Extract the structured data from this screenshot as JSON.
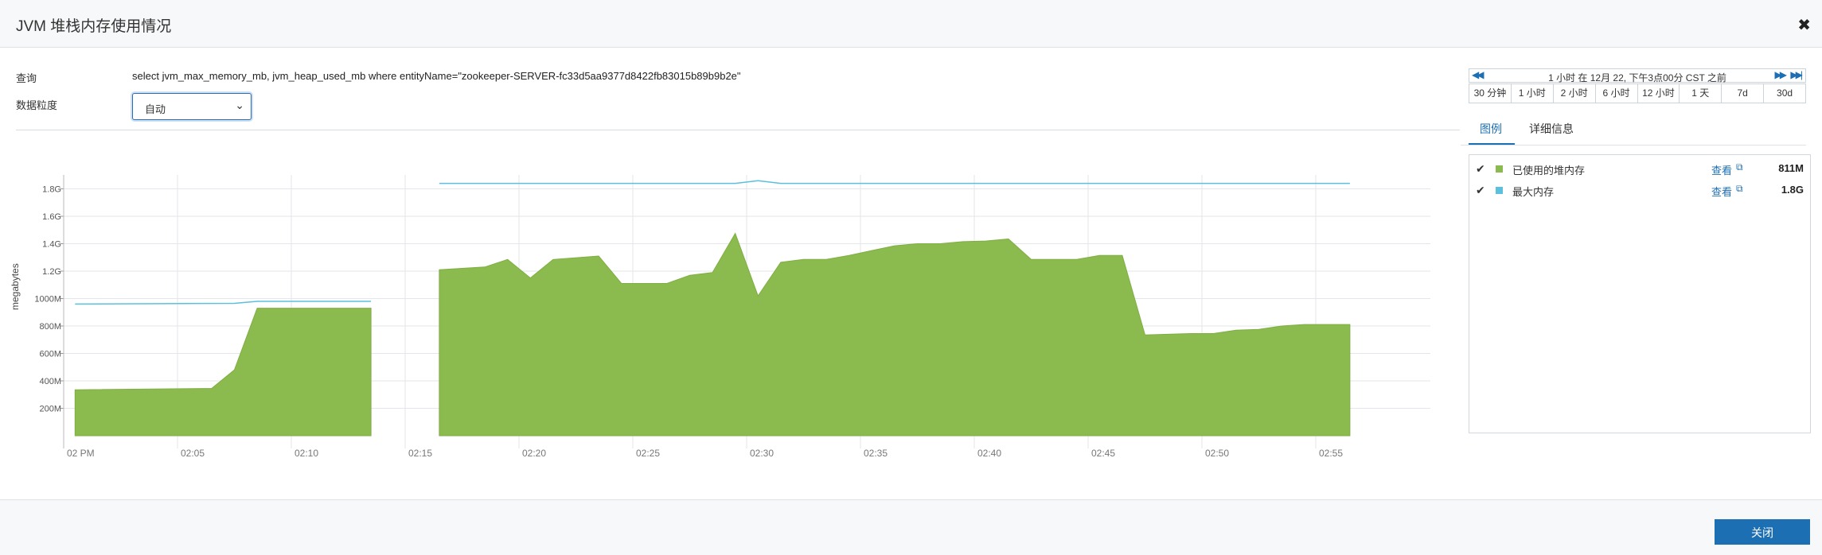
{
  "dialog": {
    "title": "JVM 堆栈内存使用情况",
    "close_icon": "close-icon"
  },
  "query": {
    "label": "查询",
    "value": "select jvm_max_memory_mb, jvm_heap_used_mb where entityName=\"zookeeper-SERVER-fc33d5aa9377d8422fb83015b89b9b2e\""
  },
  "granularity": {
    "label": "数据粒度",
    "selected": "自动"
  },
  "time_range": {
    "label": "1 小时 在 12月 22, 下午3点00分 CST 之前",
    "buttons": [
      "30 分钟",
      "1 小时",
      "2 小时",
      "6 小时",
      "12 小时",
      "1 天",
      "7d",
      "30d"
    ]
  },
  "tabs": [
    {
      "label": "图例"
    },
    {
      "label": "详细信息"
    }
  ],
  "legend": [
    {
      "name": "已使用的堆内存",
      "view": "查看",
      "value": "811M",
      "color": "#8bbb4f"
    },
    {
      "name": "最大内存",
      "view": "查看",
      "value": "1.8G",
      "color": "#5bc0de"
    }
  ],
  "footer": {
    "close_label": "关闭"
  },
  "chart_data": {
    "type": "area",
    "ylabel": "megabytes",
    "y_ticks": [
      "200M",
      "400M",
      "600M",
      "800M",
      "1000M",
      "1.2G",
      "1.4G",
      "1.6G",
      "1.8G"
    ],
    "x_ticks": [
      "02 PM",
      "02:05",
      "02:10",
      "02:15",
      "02:20",
      "02:25",
      "02:30",
      "02:35",
      "02:40",
      "02:45",
      "02:50",
      "02:55"
    ],
    "x_unit": "minutes after 2 PM",
    "ylim": [
      0,
      1880
    ],
    "grid": true,
    "series": [
      {
        "name": "已使用的堆内存",
        "color": "#8bbb4f",
        "segments": [
          [
            [
              0.5,
              335
            ],
            [
              6.5,
              345
            ],
            [
              7.5,
              480
            ],
            [
              8.5,
              930
            ],
            [
              13.5,
              930
            ]
          ],
          [
            [
              16.5,
              1210
            ],
            [
              18.5,
              1230
            ],
            [
              19.5,
              1285
            ],
            [
              20.5,
              1150
            ],
            [
              21.5,
              1285
            ],
            [
              23.5,
              1310
            ],
            [
              24.5,
              1110
            ],
            [
              26.5,
              1110
            ],
            [
              27.5,
              1170
            ],
            [
              28.5,
              1190
            ],
            [
              29.5,
              1475
            ],
            [
              30.5,
              1020
            ],
            [
              31.5,
              1265
            ],
            [
              32.5,
              1285
            ],
            [
              33.5,
              1285
            ],
            [
              34.5,
              1315
            ],
            [
              35.5,
              1350
            ],
            [
              36.5,
              1385
            ],
            [
              37.5,
              1400
            ],
            [
              38.5,
              1400
            ],
            [
              39.5,
              1415
            ],
            [
              40.5,
              1420
            ],
            [
              41.5,
              1435
            ],
            [
              42.5,
              1285
            ],
            [
              43.5,
              1285
            ],
            [
              44.5,
              1285
            ],
            [
              45.5,
              1315
            ],
            [
              46.5,
              1315
            ],
            [
              47.5,
              735
            ],
            [
              49.5,
              745
            ],
            [
              50.5,
              745
            ],
            [
              51.5,
              770
            ],
            [
              52.5,
              775
            ],
            [
              53.5,
              800
            ],
            [
              54.5,
              811
            ],
            [
              56.5,
              811
            ]
          ]
        ]
      },
      {
        "name": "最大内存",
        "color": "#5bc0de",
        "segments": [
          [
            [
              0.5,
              960
            ],
            [
              7.5,
              965
            ],
            [
              8.5,
              980
            ],
            [
              13.5,
              980
            ]
          ],
          [
            [
              16.5,
              1840
            ],
            [
              29.5,
              1840
            ],
            [
              30.5,
              1860
            ],
            [
              31.5,
              1840
            ],
            [
              56.5,
              1840
            ]
          ]
        ]
      }
    ]
  }
}
